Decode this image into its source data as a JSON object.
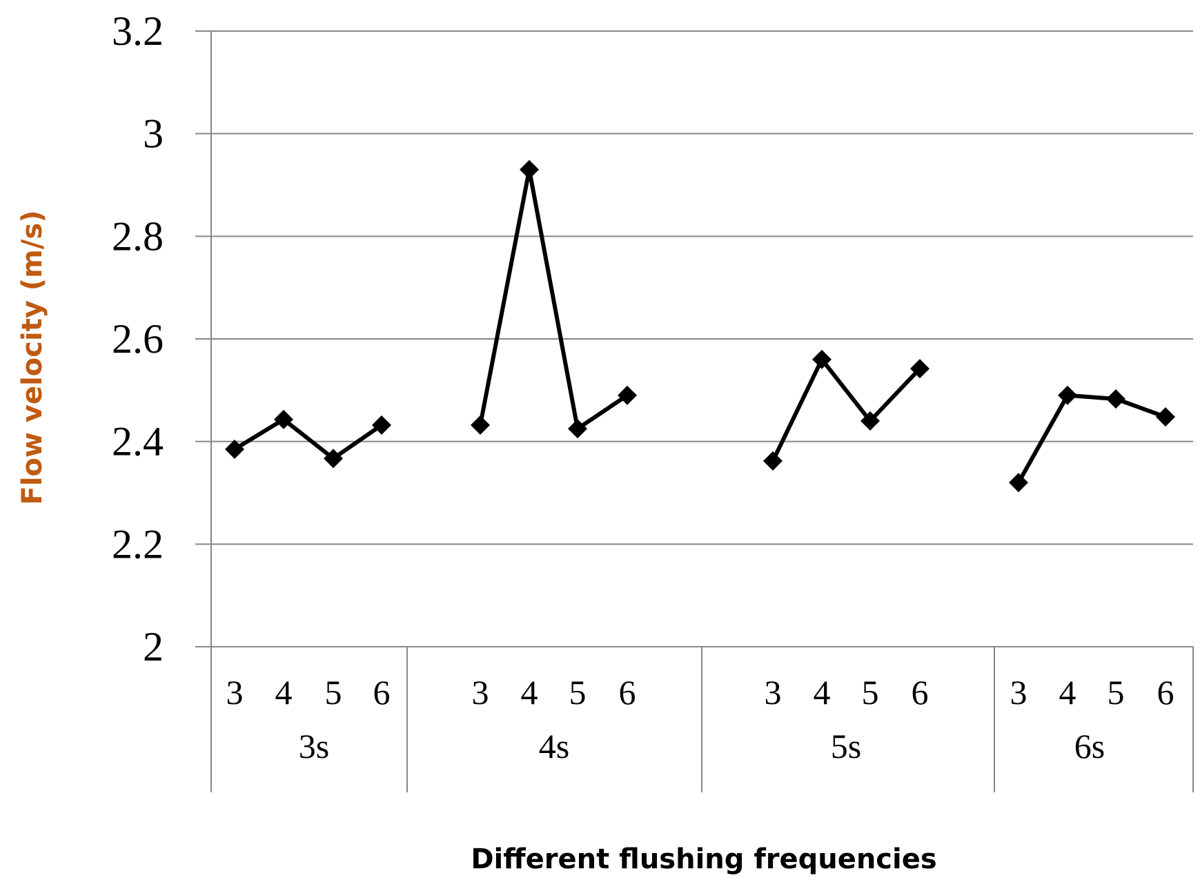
{
  "chart_data": {
    "type": "line",
    "title": "",
    "xlabel": "Different flushing frequencies",
    "ylabel": "Flow velocity (m/s)",
    "ylim": [
      2,
      3.2
    ],
    "yticks": [
      "2",
      "2.2",
      "2.4",
      "2.6",
      "2.8",
      "3",
      "3.2"
    ],
    "grid": true,
    "legend": "none",
    "groups": [
      {
        "label": "3s",
        "categories": [
          "3",
          "4",
          "5",
          "6"
        ],
        "values": [
          2.385,
          2.443,
          2.367,
          2.432
        ]
      },
      {
        "label": "4s",
        "categories": [
          "3",
          "4",
          "5",
          "6"
        ],
        "values": [
          2.432,
          2.93,
          2.425,
          2.49
        ]
      },
      {
        "label": "5s",
        "categories": [
          "3",
          "4",
          "5",
          "6"
        ],
        "values": [
          2.362,
          2.56,
          2.44,
          2.542
        ]
      },
      {
        "label": "6s",
        "categories": [
          "3",
          "4",
          "5",
          "6"
        ],
        "values": [
          2.32,
          2.49,
          2.483,
          2.448
        ]
      }
    ],
    "colors": {
      "line": "#000000",
      "grid": "#868686",
      "ylabel": "#c05a10",
      "xlabel": "#000000"
    }
  }
}
